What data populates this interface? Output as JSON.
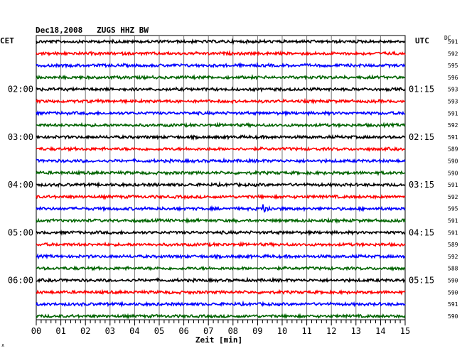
{
  "chart_data": {
    "type": "line",
    "title": "Dec18,2008   ZUGS HHZ BW",
    "left_timezone": "CET",
    "right_timezone": "UTC",
    "dc_header": "DC",
    "xlabel": "Zeit [min]",
    "xlim": [
      0,
      15
    ],
    "x_ticks": [
      "00",
      "01",
      "02",
      "03",
      "04",
      "05",
      "06",
      "07",
      "08",
      "09",
      "10",
      "11",
      "12",
      "13",
      "14",
      "15"
    ],
    "trace_colors": [
      "#000000",
      "#ff0000",
      "#0000ff",
      "#006400"
    ],
    "left_hour_labels": [
      {
        "trace": 4,
        "label": "02:00"
      },
      {
        "trace": 8,
        "label": "03:00"
      },
      {
        "trace": 12,
        "label": "04:00"
      },
      {
        "trace": 16,
        "label": "05:00"
      },
      {
        "trace": 20,
        "label": "06:00"
      }
    ],
    "right_hour_labels": [
      {
        "trace": 4,
        "label": "01:15"
      },
      {
        "trace": 8,
        "label": "02:15"
      },
      {
        "trace": 12,
        "label": "03:15"
      },
      {
        "trace": 16,
        "label": "04:15"
      },
      {
        "trace": 20,
        "label": "05:15"
      }
    ],
    "dc_values": [
      "591",
      "592",
      "595",
      "596",
      "593",
      "593",
      "591",
      "592",
      "591",
      "589",
      "590",
      "590",
      "591",
      "592",
      "595",
      "591",
      "591",
      "589",
      "592",
      "588",
      "590",
      "590",
      "591",
      "590"
    ],
    "events": [
      {
        "trace": 14,
        "minute": 9.2
      }
    ],
    "grid": true
  },
  "corner_mark": "∧"
}
